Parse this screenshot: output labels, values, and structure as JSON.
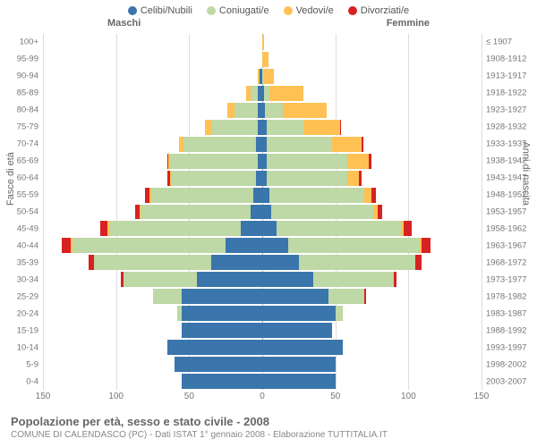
{
  "chart": {
    "type": "population_pyramid_stacked",
    "background_color": "#ffffff",
    "grid_color": "#dddddd",
    "text_color": "#777777",
    "legend": [
      {
        "label": "Celibi/Nubili",
        "color": "#3a76ac"
      },
      {
        "label": "Coniugati/e",
        "color": "#bed8a6"
      },
      {
        "label": "Vedovi/e",
        "color": "#ffc153"
      },
      {
        "label": "Divorziati/e",
        "color": "#d62222"
      }
    ],
    "header_male": "Maschi",
    "header_female": "Femmine",
    "yaxis_left_title": "Fasce di età",
    "yaxis_right_title": "Anni di nascita",
    "xaxis": {
      "ticks": [
        150,
        100,
        50,
        0,
        50,
        100,
        150
      ],
      "max": 150
    },
    "age_groups": [
      {
        "age": "100+",
        "birth": "≤ 1907",
        "m": [
          0,
          0,
          0,
          0
        ],
        "f": [
          0,
          0,
          1,
          0
        ]
      },
      {
        "age": "95-99",
        "birth": "1908-1912",
        "m": [
          0,
          0,
          0,
          0
        ],
        "f": [
          0,
          0,
          4,
          0
        ]
      },
      {
        "age": "90-94",
        "birth": "1913-1917",
        "m": [
          2,
          0,
          1,
          0
        ],
        "f": [
          0,
          1,
          7,
          0
        ]
      },
      {
        "age": "85-89",
        "birth": "1918-1922",
        "m": [
          3,
          5,
          3,
          0
        ],
        "f": [
          1,
          4,
          23,
          0
        ]
      },
      {
        "age": "80-84",
        "birth": "1923-1927",
        "m": [
          3,
          16,
          5,
          0
        ],
        "f": [
          2,
          12,
          30,
          0
        ]
      },
      {
        "age": "75-79",
        "birth": "1928-1932",
        "m": [
          3,
          32,
          4,
          0
        ],
        "f": [
          3,
          25,
          25,
          1
        ]
      },
      {
        "age": "70-74",
        "birth": "1933-1937",
        "m": [
          4,
          50,
          3,
          0
        ],
        "f": [
          3,
          45,
          20,
          1
        ]
      },
      {
        "age": "65-69",
        "birth": "1938-1942",
        "m": [
          3,
          60,
          1,
          1
        ],
        "f": [
          3,
          55,
          15,
          2
        ]
      },
      {
        "age": "60-64",
        "birth": "1943-1947",
        "m": [
          4,
          58,
          1,
          2
        ],
        "f": [
          3,
          55,
          8,
          2
        ]
      },
      {
        "age": "55-59",
        "birth": "1948-1952",
        "m": [
          6,
          70,
          1,
          3
        ],
        "f": [
          5,
          65,
          5,
          3
        ]
      },
      {
        "age": "50-54",
        "birth": "1953-1957",
        "m": [
          8,
          75,
          1,
          3
        ],
        "f": [
          6,
          70,
          3,
          3
        ]
      },
      {
        "age": "45-49",
        "birth": "1958-1962",
        "m": [
          15,
          90,
          1,
          5
        ],
        "f": [
          10,
          85,
          2,
          5
        ]
      },
      {
        "age": "40-44",
        "birth": "1963-1967",
        "m": [
          25,
          105,
          1,
          6
        ],
        "f": [
          18,
          90,
          1,
          6
        ]
      },
      {
        "age": "35-39",
        "birth": "1968-1972",
        "m": [
          35,
          80,
          0,
          4
        ],
        "f": [
          25,
          80,
          0,
          4
        ]
      },
      {
        "age": "30-34",
        "birth": "1973-1977",
        "m": [
          45,
          50,
          0,
          2
        ],
        "f": [
          35,
          55,
          0,
          2
        ]
      },
      {
        "age": "25-29",
        "birth": "1978-1982",
        "m": [
          55,
          20,
          0,
          0
        ],
        "f": [
          45,
          25,
          0,
          1
        ]
      },
      {
        "age": "20-24",
        "birth": "1983-1987",
        "m": [
          55,
          3,
          0,
          0
        ],
        "f": [
          50,
          5,
          0,
          0
        ]
      },
      {
        "age": "15-19",
        "birth": "1988-1992",
        "m": [
          55,
          0,
          0,
          0
        ],
        "f": [
          48,
          0,
          0,
          0
        ]
      },
      {
        "age": "10-14",
        "birth": "1993-1997",
        "m": [
          65,
          0,
          0,
          0
        ],
        "f": [
          55,
          0,
          0,
          0
        ]
      },
      {
        "age": "5-9",
        "birth": "1998-2002",
        "m": [
          60,
          0,
          0,
          0
        ],
        "f": [
          50,
          0,
          0,
          0
        ]
      },
      {
        "age": "0-4",
        "birth": "2003-2007",
        "m": [
          55,
          0,
          0,
          0
        ],
        "f": [
          50,
          0,
          0,
          0
        ]
      }
    ]
  },
  "footer": {
    "title": "Popolazione per età, sesso e stato civile - 2008",
    "subtitle": "COMUNE DI CALENDASCO (PC) - Dati ISTAT 1° gennaio 2008 - Elaborazione TUTTITALIA.IT"
  }
}
